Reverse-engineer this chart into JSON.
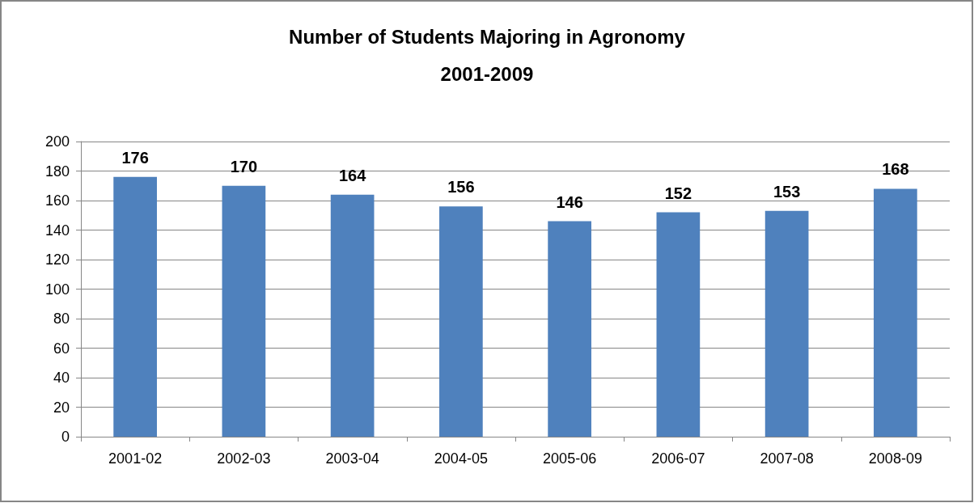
{
  "chart_data": {
    "type": "bar",
    "title": "Number of Students Majoring in Agronomy",
    "subtitle": "2001-2009",
    "categories": [
      "2001-02",
      "2002-03",
      "2003-04",
      "2004-05",
      "2005-06",
      "2006-07",
      "2007-08",
      "2008-09"
    ],
    "values": [
      176,
      170,
      164,
      156,
      146,
      152,
      153,
      168
    ],
    "color": "#4f81bd",
    "ylim": [
      0,
      200
    ],
    "yticks": [
      0,
      20,
      40,
      60,
      80,
      100,
      120,
      140,
      160,
      180,
      200
    ],
    "grid": "y",
    "data_labels": true
  }
}
